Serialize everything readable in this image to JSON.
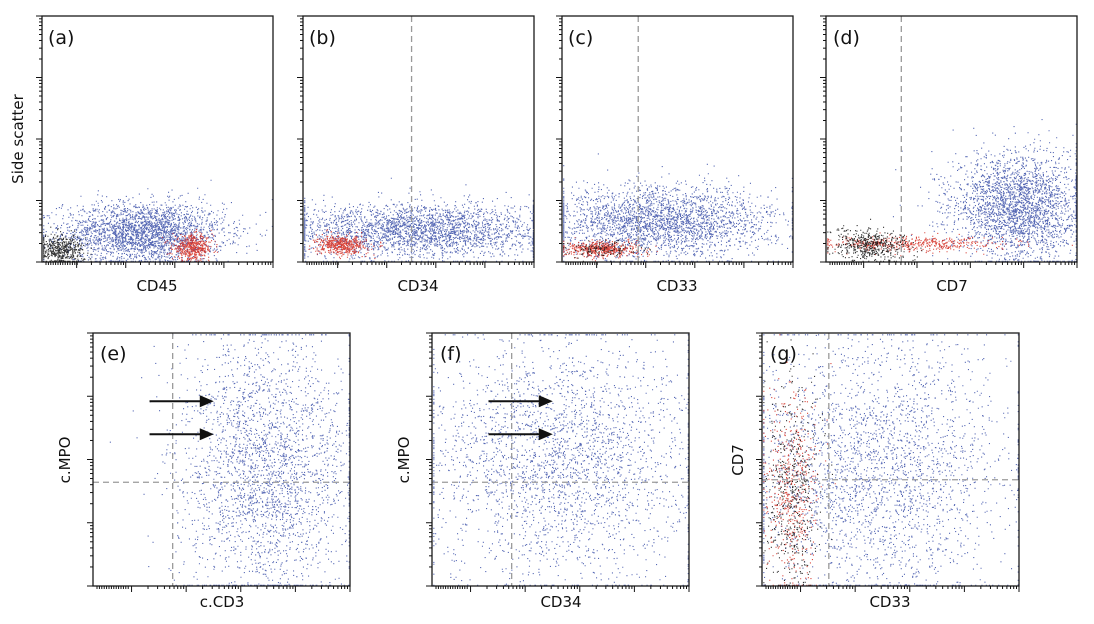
{
  "colors": {
    "blast": "#3a4fa8",
    "normal_t": "#d42a1e",
    "debris": "#111111",
    "gate": "#9a9a9a"
  },
  "chart_data": [
    {
      "type": "scatter",
      "panel": "(a)",
      "xlabel": "CD45",
      "ylabel": "Side scatter",
      "scale": "log",
      "clusters": [
        {
          "population": "blast",
          "x": [
            0.16,
            0.72
          ],
          "y": [
            0.02,
            0.22
          ],
          "density": "high"
        },
        {
          "population": "normal_t",
          "x": [
            0.58,
            0.72
          ],
          "y": [
            0.02,
            0.1
          ],
          "density": "medium"
        },
        {
          "population": "debris",
          "x": [
            0.0,
            0.16
          ],
          "y": [
            0.0,
            0.1
          ],
          "density": "medium"
        }
      ]
    },
    {
      "type": "scatter",
      "panel": "(b)",
      "xlabel": "CD34",
      "ylabel": "",
      "scale": "log",
      "gate_x": 0.47,
      "clusters": [
        {
          "population": "blast",
          "x": [
            0.05,
            0.95
          ],
          "y": [
            0.04,
            0.22
          ],
          "density": "high"
        },
        {
          "population": "normal_t",
          "x": [
            0.08,
            0.25
          ],
          "y": [
            0.04,
            0.1
          ],
          "density": "medium"
        }
      ]
    },
    {
      "type": "scatter",
      "panel": "(c)",
      "xlabel": "CD33",
      "ylabel": "",
      "scale": "log",
      "gate_x": 0.33,
      "clusters": [
        {
          "population": "blast",
          "x": [
            0.05,
            0.82
          ],
          "y": [
            0.05,
            0.28
          ],
          "density": "high"
        },
        {
          "population": "normal_t",
          "x": [
            0.05,
            0.3
          ],
          "y": [
            0.03,
            0.08
          ],
          "density": "medium"
        },
        {
          "population": "debris",
          "x": [
            0.05,
            0.3
          ],
          "y": [
            0.03,
            0.08
          ],
          "density": "low"
        }
      ]
    },
    {
      "type": "scatter",
      "panel": "(d)",
      "xlabel": "CD7",
      "ylabel": "",
      "scale": "log",
      "gate_x": 0.3,
      "clusters": [
        {
          "population": "blast",
          "x": [
            0.55,
            0.98
          ],
          "y": [
            0.05,
            0.4
          ],
          "density": "high"
        },
        {
          "population": "normal_t",
          "x": [
            0.05,
            0.65
          ],
          "y": [
            0.05,
            0.1
          ],
          "density": "medium"
        },
        {
          "population": "debris",
          "x": [
            0.05,
            0.3
          ],
          "y": [
            0.02,
            0.12
          ],
          "density": "medium"
        }
      ]
    },
    {
      "type": "scatter",
      "panel": "(e)",
      "xlabel": "c.CD3",
      "ylabel": "c.MPO",
      "scale": "log",
      "gate_x": 0.31,
      "gate_y": 0.41,
      "arrows_y": [
        0.73,
        0.6
      ],
      "clusters": [
        {
          "population": "blast",
          "x": [
            0.4,
            0.95
          ],
          "y": [
            0.05,
            0.88
          ],
          "density": "high"
        }
      ]
    },
    {
      "type": "scatter",
      "panel": "(f)",
      "xlabel": "CD34",
      "ylabel": "c.MPO",
      "scale": "log",
      "gate_x": 0.31,
      "gate_y": 0.41,
      "arrows_y": [
        0.73,
        0.6
      ],
      "clusters": [
        {
          "population": "blast",
          "x": [
            0.08,
            0.9
          ],
          "y": [
            0.1,
            0.88
          ],
          "density": "high"
        }
      ]
    },
    {
      "type": "scatter",
      "panel": "(g)",
      "xlabel": "CD33",
      "ylabel": "CD7",
      "scale": "log",
      "gate_x": 0.26,
      "gate_y": 0.42,
      "clusters": [
        {
          "population": "blast",
          "x": [
            0.05,
            0.85
          ],
          "y": [
            0.05,
            0.88
          ],
          "density": "high"
        },
        {
          "population": "normal_t",
          "x": [
            0.03,
            0.2
          ],
          "y": [
            0.05,
            0.7
          ],
          "density": "medium"
        },
        {
          "population": "debris",
          "x": [
            0.03,
            0.2
          ],
          "y": [
            0.05,
            0.7
          ],
          "density": "medium"
        }
      ]
    }
  ]
}
